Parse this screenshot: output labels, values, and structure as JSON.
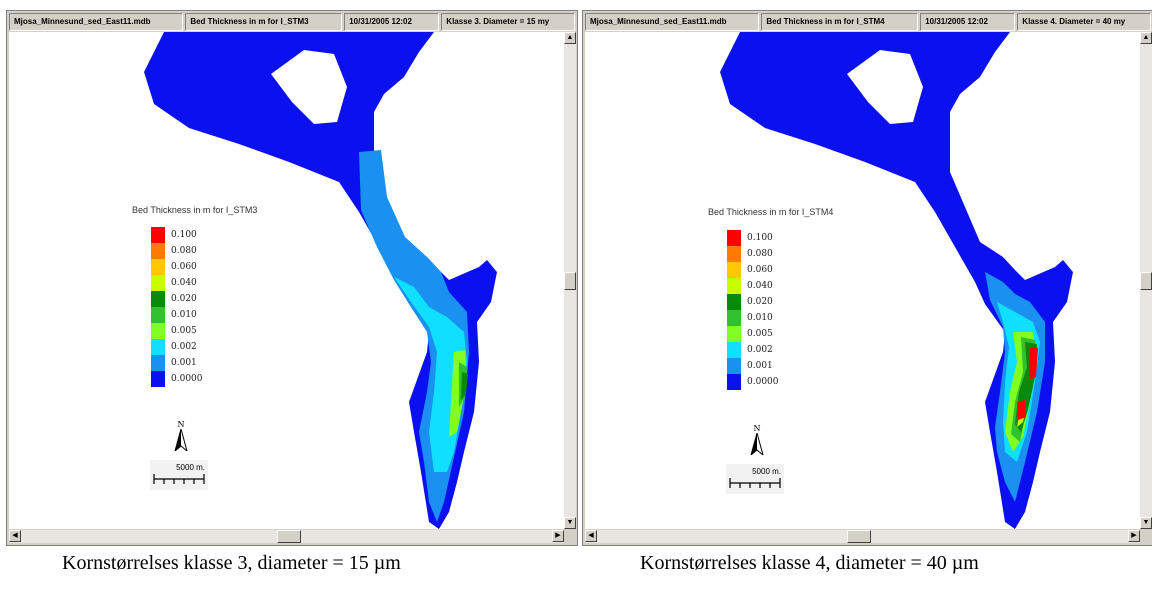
{
  "panels": [
    {
      "status": [
        "Mjosa_Minnesund_sed_East11.mdb",
        "Bed Thickness in m for I_STM3",
        "10/31/2005 12:02",
        "Klasse 3. Diameter = 15 my"
      ],
      "legend_title": "Bed Thickness in m for I_STM3",
      "north_label": "N",
      "scale_label": "5000 m.",
      "caption": "Kornstørrelses klasse 3, diameter = 15 µm"
    },
    {
      "status": [
        "Mjosa_Minnesund_sed_East11.mdb",
        "Bed Thickness in m for I_STM4",
        "10/31/2005 12:02",
        "Klasse 4. Diameter = 40 my"
      ],
      "legend_title": "Bed Thickness in m for I_STM4",
      "north_label": "N",
      "scale_label": "5000 m.",
      "caption": "Kornstørrelses klasse 4, diameter = 40 µm"
    }
  ],
  "legend": [
    {
      "label": "0.100",
      "color": "#ff0000"
    },
    {
      "label": "0.080",
      "color": "#ff7a00"
    },
    {
      "label": "0.060",
      "color": "#ffc800"
    },
    {
      "label": "0.040",
      "color": "#c8ff00"
    },
    {
      "label": "0.020",
      "color": "#0a8a0a"
    },
    {
      "label": "0.010",
      "color": "#30c030"
    },
    {
      "label": "0.005",
      "color": "#80ff20"
    },
    {
      "label": "0.002",
      "color": "#10e0ff"
    },
    {
      "label": "0.001",
      "color": "#1a90f0"
    },
    {
      "label": "0.0000",
      "color": "#0a10f0"
    }
  ],
  "icons": {
    "arrow_up": "▲",
    "arrow_down": "▼",
    "arrow_left": "◀",
    "arrow_right": "▶"
  }
}
